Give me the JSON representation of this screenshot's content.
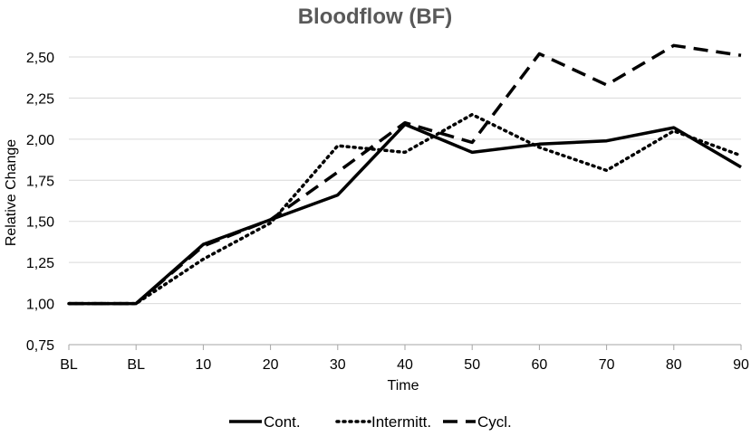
{
  "chart_data": {
    "type": "line",
    "title": "Bloodflow (BF)",
    "xlabel": "Time",
    "ylabel": "Relative Change",
    "categories": [
      "BL",
      "BL",
      "10",
      "20",
      "30",
      "40",
      "50",
      "60",
      "70",
      "80",
      "90"
    ],
    "ylim": [
      0.75,
      2.5
    ],
    "yticks": [
      0.75,
      1.0,
      1.25,
      1.5,
      1.75,
      2.0,
      2.25,
      2.5
    ],
    "ytick_labels": [
      "0,75",
      "1,00",
      "1,25",
      "1,50",
      "1,75",
      "2,00",
      "2,25",
      "2,50"
    ],
    "grid": true,
    "legend_position": "bottom",
    "series": [
      {
        "name": "Cont.",
        "style": "solid",
        "color": "#000000",
        "values": [
          1.0,
          1.0,
          1.36,
          1.51,
          1.66,
          2.09,
          1.92,
          1.97,
          1.99,
          2.07,
          1.83
        ]
      },
      {
        "name": "Intermitt.",
        "style": "dotted",
        "color": "#000000",
        "values": [
          1.0,
          1.0,
          1.27,
          1.49,
          1.96,
          1.92,
          2.15,
          1.95,
          1.81,
          2.05,
          1.9
        ]
      },
      {
        "name": "Cycl.",
        "style": "dashed",
        "color": "#000000",
        "values": [
          1.0,
          1.0,
          1.35,
          1.51,
          1.8,
          2.1,
          1.98,
          2.52,
          2.33,
          2.57,
          2.51
        ]
      }
    ]
  }
}
